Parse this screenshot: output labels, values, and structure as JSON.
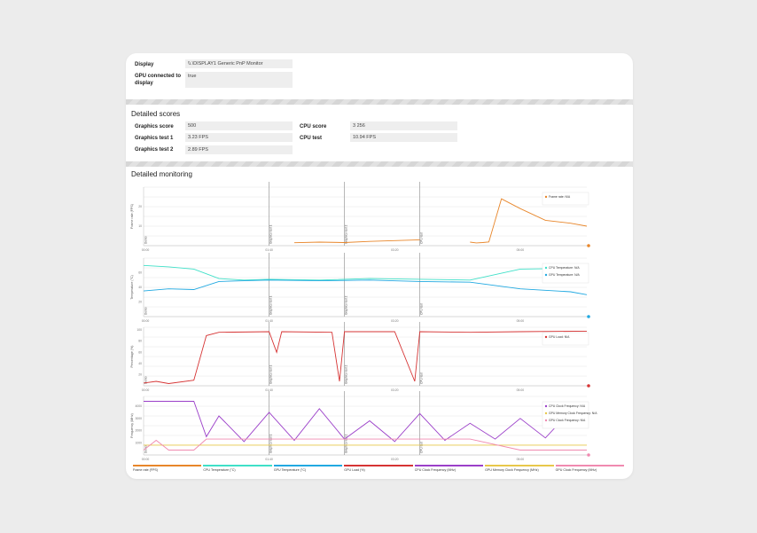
{
  "display_info": {
    "display_label": "Display",
    "display_value": "\\\\.\\DISPLAY1 Generic PnP Monitor",
    "gpu_connected_label": "GPU connected to display",
    "gpu_connected_value": "true"
  },
  "detailed_scores": {
    "title": "Detailed scores",
    "graphics_score_label": "Graphics score",
    "graphics_score_value": "500",
    "graphics_test1_label": "Graphics test 1",
    "graphics_test1_value": "3.23 FPS",
    "graphics_test2_label": "Graphics test 2",
    "graphics_test2_value": "2.89 FPS",
    "cpu_score_label": "CPU score",
    "cpu_score_value": "3 256",
    "cpu_test_label": "CPU test",
    "cpu_test_value": "10.94 FPS"
  },
  "detailed_monitoring": {
    "title": "Detailed monitoring",
    "x_ticks": [
      "00:00",
      "01:40",
      "03:20",
      "05:00"
    ],
    "phase_labels": [
      "Demo",
      "Graphics test 1",
      "Graphics test 2",
      "CPU test"
    ],
    "legend": [
      {
        "label": "Frame rate (FPS)",
        "color": "#e8862a"
      },
      {
        "label": "CPU Temperature (°C)",
        "color": "#3fe0c8"
      },
      {
        "label": "GPU Temperature (°C)",
        "color": "#21a9e1"
      },
      {
        "label": "GPU Load (%)",
        "color": "#d63434"
      },
      {
        "label": "CPU Clock Frequency (MHz)",
        "color": "#9b3fc9"
      },
      {
        "label": "GPU Memory Clock Frequency (MHz)",
        "color": "#e8c84a"
      },
      {
        "label": "GPU Clock Frequency (MHz)",
        "color": "#f08ab0"
      }
    ]
  },
  "chart_data": [
    {
      "type": "line",
      "ylabel": "Frame rate (FPS)",
      "yticks": [
        "10",
        "20"
      ],
      "tooltip": [
        {
          "name": "Frame rate:",
          "value": "N/A",
          "color": "#e8862a"
        }
      ],
      "series": [
        {
          "name": "Frame rate",
          "color": "#e8862a",
          "x": [
            0,
            100,
            120,
            140,
            160,
            180,
            200,
            220,
            240,
            260,
            265,
            270,
            275,
            285,
            300,
            320,
            340,
            353
          ],
          "y": [
            null,
            null,
            1.5,
            1.8,
            1.6,
            2.2,
            2.6,
            3.0,
            null,
            1.8,
            1.4,
            1.6,
            1.9,
            24,
            19,
            13,
            11.5,
            10
          ]
        }
      ]
    },
    {
      "type": "line",
      "ylabel": "Temperature (°C)",
      "yticks": [
        "20",
        "40",
        "60"
      ],
      "tooltip": [
        {
          "name": "CPU Temperature:",
          "value": "N/A",
          "color": "#3fe0c8"
        },
        {
          "name": "GPU Temperature:",
          "value": "N/A",
          "color": "#21a9e1"
        }
      ],
      "series": [
        {
          "name": "CPU Temperature",
          "color": "#3fe0c8",
          "x": [
            0,
            20,
            40,
            60,
            80,
            100,
            140,
            180,
            220,
            260,
            300,
            340,
            353
          ],
          "y": [
            70,
            68,
            65,
            52,
            50,
            51,
            50,
            52,
            51,
            50,
            65,
            66,
            68
          ]
        },
        {
          "name": "GPU Temperature",
          "color": "#21a9e1",
          "x": [
            0,
            20,
            40,
            60,
            80,
            100,
            140,
            180,
            220,
            260,
            300,
            340,
            353
          ],
          "y": [
            35,
            38,
            37,
            48,
            49,
            50,
            49,
            50,
            48,
            47,
            38,
            34,
            30
          ]
        }
      ]
    },
    {
      "type": "line",
      "ylabel": "Percentage (%)",
      "yticks": [
        "20",
        "40",
        "60",
        "80",
        "100"
      ],
      "tooltip": [
        {
          "name": "GPU Load:",
          "value": "N/A",
          "color": "#d63434"
        }
      ],
      "series": [
        {
          "name": "GPU Load",
          "color": "#d63434",
          "x": [
            0,
            10,
            20,
            40,
            50,
            60,
            100,
            106,
            110,
            150,
            156,
            160,
            200,
            216,
            220,
            260,
            300,
            353
          ],
          "y": [
            5,
            8,
            4,
            10,
            90,
            96,
            97,
            60,
            97,
            96,
            8,
            97,
            97,
            8,
            97,
            96,
            97,
            98
          ]
        }
      ]
    },
    {
      "type": "line",
      "ylabel": "Frequency (MHz)",
      "yticks": [
        "1000",
        "2000",
        "3000",
        "4000"
      ],
      "tooltip": [
        {
          "name": "CPU Clock Frequency:",
          "value": "N/A",
          "color": "#9b3fc9"
        },
        {
          "name": "GPU Memory Clock Frequency:",
          "value": "N/A",
          "color": "#e8c84a"
        },
        {
          "name": "GPU Clock Frequency:",
          "value": "N/A",
          "color": "#f08ab0"
        }
      ],
      "series": [
        {
          "name": "CPU Clock Frequency",
          "color": "#9b3fc9",
          "x": [
            0,
            40,
            50,
            60,
            80,
            100,
            120,
            140,
            160,
            180,
            200,
            220,
            240,
            260,
            280,
            300,
            320,
            340,
            353
          ],
          "y": [
            4400,
            4400,
            1500,
            3200,
            1100,
            3500,
            1200,
            3800,
            1300,
            2800,
            1100,
            3400,
            1200,
            2600,
            1300,
            3000,
            1400,
            3600,
            3300
          ]
        },
        {
          "name": "GPU Memory Clock Frequency",
          "color": "#e8c84a",
          "x": [
            0,
            353
          ],
          "y": [
            810,
            810
          ]
        },
        {
          "name": "GPU Clock Frequency",
          "color": "#f08ab0",
          "x": [
            0,
            10,
            20,
            40,
            50,
            100,
            150,
            200,
            260,
            300,
            340,
            353
          ],
          "y": [
            400,
            1200,
            400,
            400,
            1300,
            1300,
            1300,
            1300,
            1300,
            400,
            400,
            400
          ]
        }
      ]
    }
  ]
}
